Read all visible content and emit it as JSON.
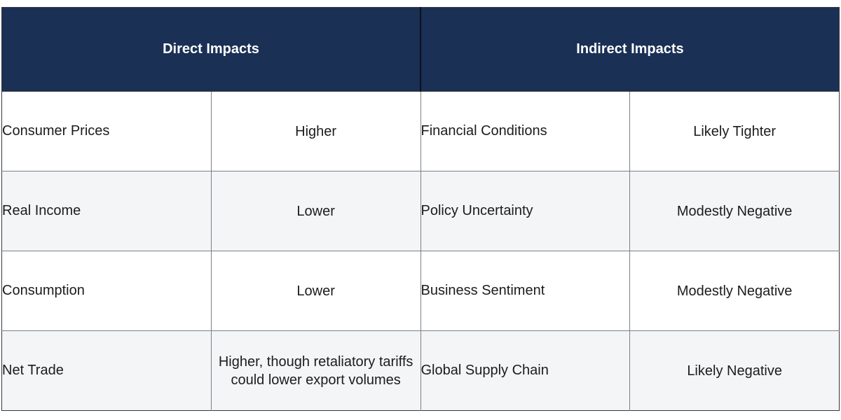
{
  "chart_data": {
    "type": "table",
    "column_groups": [
      "Direct Impacts",
      "Indirect Impacts"
    ],
    "rows": [
      [
        "Consumer Prices",
        "Higher",
        "Financial Conditions",
        "Likely Tighter"
      ],
      [
        "Real Income",
        "Lower",
        "Policy Uncertainty",
        "Modestly Negative"
      ],
      [
        "Consumption",
        "Lower",
        "Business Sentiment",
        "Modestly Negative"
      ],
      [
        "Net Trade",
        "Higher, though retaliatory tariffs could lower export volumes",
        "Global Supply Chain",
        "Likely Negative"
      ]
    ]
  },
  "colors": {
    "header_bg": "#1a3055",
    "header_text": "#ffffff",
    "row_bg": "#ffffff",
    "stripe_bg": "#f4f5f6",
    "body_text": "#1c1c1c",
    "link_text": "#33465a",
    "border_inner": "#7e8084",
    "border_outer": "#33373d",
    "divider_mid": "#0e1118"
  }
}
